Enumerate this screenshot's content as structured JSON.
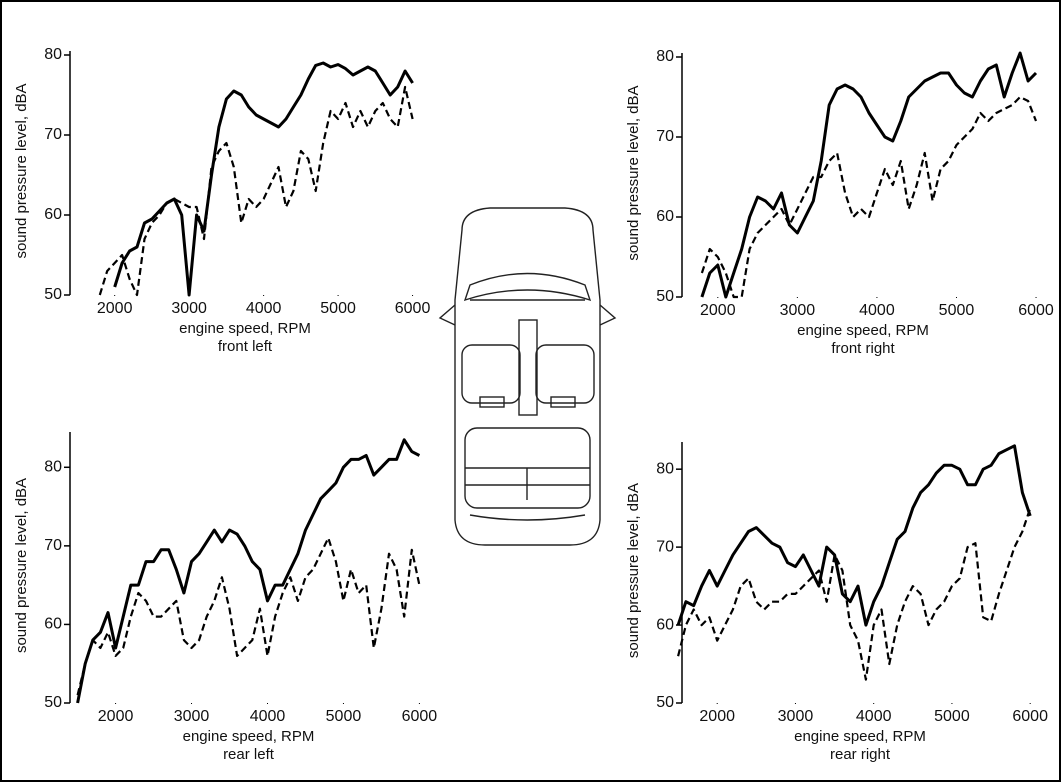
{
  "chart_data": [
    {
      "type": "line",
      "ylabel": "sound pressure level, dBA",
      "xlabel": "engine speed, RPM",
      "caption": "front left",
      "xlim": [
        1400,
        6100
      ],
      "ylim": [
        50,
        81
      ],
      "xticks": [
        2000,
        3000,
        4000,
        5000,
        6000
      ],
      "yticks": [
        50,
        60,
        70,
        80
      ],
      "x": [
        1800,
        1900,
        2000,
        2100,
        2200,
        2300,
        2400,
        2500,
        2600,
        2700,
        2800,
        2900,
        3000,
        3100,
        3200,
        3300,
        3400,
        3500,
        3600,
        3700,
        3800,
        3900,
        4000,
        4100,
        4200,
        4300,
        4400,
        4500,
        4600,
        4700,
        4800,
        4900,
        5000,
        5100,
        5200,
        5300,
        5400,
        5500,
        5600,
        5700,
        5800,
        5900,
        6000
      ],
      "series": [
        {
          "color": "#000000",
          "style": "solid",
          "values": [
            null,
            null,
            51,
            54,
            55.5,
            56,
            59,
            59.5,
            60.5,
            61.5,
            62,
            60,
            50,
            60,
            58,
            65,
            71,
            74.5,
            75.5,
            75,
            73.5,
            72.5,
            72,
            71.5,
            71,
            72,
            73.5,
            75,
            77,
            78.7,
            79,
            78.5,
            78.8,
            78.3,
            77.5,
            78,
            78.5,
            78,
            76.5,
            75,
            76,
            78,
            76.5
          ]
        },
        {
          "color": "#000000",
          "style": "dashed",
          "values": [
            50,
            53,
            54,
            55,
            52,
            50,
            57,
            59,
            60,
            61.5,
            62,
            61.5,
            61,
            61,
            57,
            66,
            68,
            69,
            66,
            59,
            62,
            61,
            62,
            64,
            66,
            61,
            63,
            68,
            67,
            63,
            69,
            73,
            72,
            74,
            71,
            73,
            71,
            73,
            74,
            72,
            71,
            76,
            72
          ]
        }
      ]
    },
    {
      "type": "line",
      "ylabel": "sound pressure level, dBA",
      "xlabel": "engine speed, RPM",
      "caption": "front right",
      "xlim": [
        1550,
        6100
      ],
      "ylim": [
        50,
        81
      ],
      "xticks": [
        2000,
        3000,
        4000,
        5000,
        6000
      ],
      "yticks": [
        50,
        60,
        70,
        80
      ],
      "x": [
        1800,
        1900,
        2000,
        2100,
        2200,
        2300,
        2400,
        2500,
        2600,
        2700,
        2800,
        2900,
        3000,
        3100,
        3200,
        3300,
        3400,
        3500,
        3600,
        3700,
        3800,
        3900,
        4000,
        4100,
        4200,
        4300,
        4400,
        4500,
        4600,
        4700,
        4800,
        4900,
        5000,
        5100,
        5200,
        5300,
        5400,
        5500,
        5600,
        5700,
        5800,
        5900,
        6000
      ],
      "series": [
        {
          "color": "#000000",
          "style": "solid",
          "values": [
            50,
            53,
            54,
            50,
            53,
            56,
            60,
            62.5,
            62,
            61,
            63,
            59,
            58,
            60,
            62,
            67,
            74,
            76,
            76.5,
            76,
            75,
            73,
            71.5,
            70,
            69.5,
            72,
            75,
            76,
            77,
            77.5,
            78,
            78,
            76.5,
            75.5,
            75,
            77,
            78.5,
            79,
            75,
            78,
            80.5,
            77,
            78
          ]
        },
        {
          "color": "#000000",
          "style": "dashed",
          "values": [
            53,
            56,
            55,
            53,
            50,
            50,
            56,
            58,
            59,
            60,
            61,
            59,
            61,
            63,
            65,
            65,
            67,
            68,
            63,
            60,
            61,
            60,
            63,
            66,
            64,
            67,
            61,
            64,
            68,
            62,
            66,
            67,
            69,
            70,
            71,
            73,
            72,
            73,
            73.5,
            74,
            75,
            74.5,
            72
          ]
        }
      ]
    },
    {
      "type": "line",
      "ylabel": "sound pressure level, dBA",
      "xlabel": "engine speed, RPM",
      "caption": "rear left",
      "xlim": [
        1400,
        6100
      ],
      "ylim": [
        50,
        85
      ],
      "xticks": [
        2000,
        3000,
        4000,
        5000,
        6000
      ],
      "yticks": [
        50,
        60,
        70,
        80
      ],
      "x": [
        1500,
        1600,
        1700,
        1800,
        1900,
        2000,
        2100,
        2200,
        2300,
        2400,
        2500,
        2600,
        2700,
        2800,
        2900,
        3000,
        3100,
        3200,
        3300,
        3400,
        3500,
        3600,
        3700,
        3800,
        3900,
        4000,
        4100,
        4200,
        4300,
        4400,
        4500,
        4600,
        4700,
        4800,
        4900,
        5000,
        5100,
        5200,
        5300,
        5400,
        5500,
        5600,
        5700,
        5800,
        5900,
        6000
      ],
      "series": [
        {
          "color": "#000000",
          "style": "solid",
          "values": [
            50,
            55,
            58,
            59,
            61.5,
            57,
            61,
            65,
            65,
            68,
            68,
            69.5,
            69.5,
            67,
            64,
            68,
            69,
            70.5,
            72,
            70.5,
            72,
            71.5,
            70,
            68,
            67,
            63,
            65,
            65,
            67,
            69,
            72,
            74,
            76,
            77,
            78,
            80,
            81,
            81,
            81.5,
            79,
            80,
            81,
            81,
            83.5,
            82,
            81.5
          ]
        },
        {
          "color": "#000000",
          "style": "dashed",
          "values": [
            51,
            55,
            58,
            57,
            59,
            56,
            57,
            61,
            64,
            63,
            61,
            61,
            62,
            63,
            58,
            57,
            58,
            61,
            63,
            66,
            62,
            56,
            57,
            58,
            62,
            56,
            61,
            64,
            66,
            63,
            66,
            67,
            69,
            71,
            68,
            63,
            67,
            64,
            65,
            57,
            62,
            69,
            67,
            61,
            69.5,
            65
          ]
        }
      ]
    },
    {
      "type": "line",
      "ylabel": "sound pressure level, dBA",
      "xlabel": "engine speed, RPM",
      "caption": "rear right",
      "xlim": [
        1550,
        6100
      ],
      "ylim": [
        50,
        84
      ],
      "xticks": [
        2000,
        3000,
        4000,
        5000,
        6000
      ],
      "yticks": [
        50,
        60,
        70,
        80
      ],
      "x": [
        1500,
        1600,
        1700,
        1800,
        1900,
        2000,
        2100,
        2200,
        2300,
        2400,
        2500,
        2600,
        2700,
        2800,
        2900,
        3000,
        3100,
        3200,
        3300,
        3400,
        3500,
        3600,
        3700,
        3800,
        3900,
        4000,
        4100,
        4200,
        4300,
        4400,
        4500,
        4600,
        4700,
        4800,
        4900,
        5000,
        5100,
        5200,
        5300,
        5400,
        5500,
        5600,
        5700,
        5800,
        5900,
        6000
      ],
      "series": [
        {
          "color": "#000000",
          "style": "solid",
          "values": [
            60,
            63,
            62.5,
            65,
            67,
            65,
            67,
            69,
            70.5,
            72,
            72.5,
            71.5,
            70.5,
            70,
            68,
            67.5,
            69,
            67,
            65,
            70,
            69,
            64,
            63,
            65,
            60,
            63,
            65,
            68,
            71,
            72,
            75,
            77,
            78,
            79.5,
            80.5,
            80.5,
            80,
            78,
            78,
            80,
            80.5,
            82,
            82.5,
            83,
            77,
            74
          ]
        },
        {
          "color": "#000000",
          "style": "dashed",
          "values": [
            56,
            60,
            62,
            60,
            61,
            58,
            60,
            62,
            65,
            66,
            63,
            62,
            63,
            63,
            64,
            64,
            65,
            66,
            67,
            63,
            69,
            67,
            60,
            58,
            53,
            60,
            62,
            55,
            60,
            63,
            65,
            64,
            60,
            62,
            63,
            65,
            66,
            70,
            70.5,
            61,
            60.5,
            64,
            67,
            70,
            72,
            75
          ]
        }
      ]
    }
  ]
}
